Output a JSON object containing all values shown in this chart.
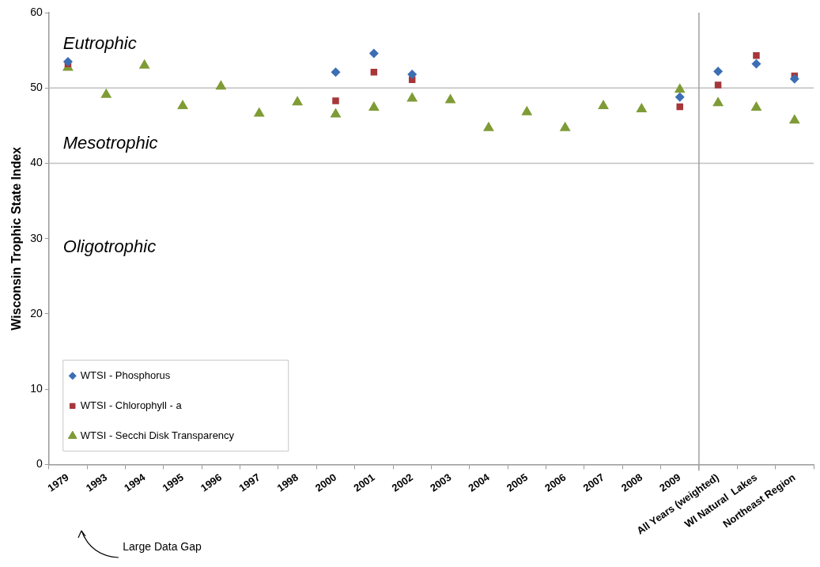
{
  "chart_data": {
    "type": "scatter",
    "ylabel": "Wisconsin Trophic State Index",
    "categories": [
      "1979",
      "1993",
      "1994",
      "1995",
      "1996",
      "1997",
      "1998",
      "2000",
      "2001",
      "2002",
      "2003",
      "2004",
      "2005",
      "2006",
      "2007",
      "2008",
      "2009",
      "All Years (weighted)",
      "WI Natural  Lakes",
      "Northeast Region"
    ],
    "series": [
      {
        "name": "WTSI - Phosphorus",
        "color": "#3d6eb4",
        "marker": "diamond",
        "values": [
          53.5,
          null,
          null,
          null,
          null,
          null,
          null,
          52.1,
          54.6,
          51.8,
          null,
          null,
          null,
          null,
          null,
          null,
          48.8,
          52.2,
          53.2,
          51.2
        ]
      },
      {
        "name": "WTSI - Chlorophyll - a",
        "color": "#a6363a",
        "marker": "square",
        "values": [
          53.2,
          null,
          null,
          null,
          null,
          null,
          null,
          48.3,
          52.1,
          51.1,
          null,
          null,
          null,
          null,
          null,
          null,
          47.5,
          50.4,
          54.3,
          51.6
        ]
      },
      {
        "name": "WTSI - Secchi Disk Transparency",
        "color": "#7f9b36",
        "marker": "triangle",
        "values": [
          52.7,
          49.1,
          53.0,
          47.6,
          50.2,
          46.6,
          48.1,
          46.5,
          47.4,
          48.6,
          48.4,
          44.7,
          46.8,
          44.7,
          47.6,
          47.2,
          49.8,
          48.0,
          47.4,
          45.7
        ]
      }
    ],
    "ylim": [
      0,
      60
    ],
    "yticks": [
      0,
      10,
      20,
      30,
      40,
      50,
      60
    ],
    "grid": false,
    "legend": "bottom left",
    "ref_lines": [
      {
        "axis": "y",
        "value": 50,
        "color": "#c0c0c0"
      },
      {
        "axis": "y",
        "value": 40,
        "color": "#c0c0c0"
      },
      {
        "axis": "x",
        "value": "All Years (weighted)",
        "color": "#a0a0a0"
      }
    ],
    "annotations": [
      "Eutrophic",
      "Mesotrophic",
      "Oligotrophic",
      "Large Data Gap"
    ]
  }
}
